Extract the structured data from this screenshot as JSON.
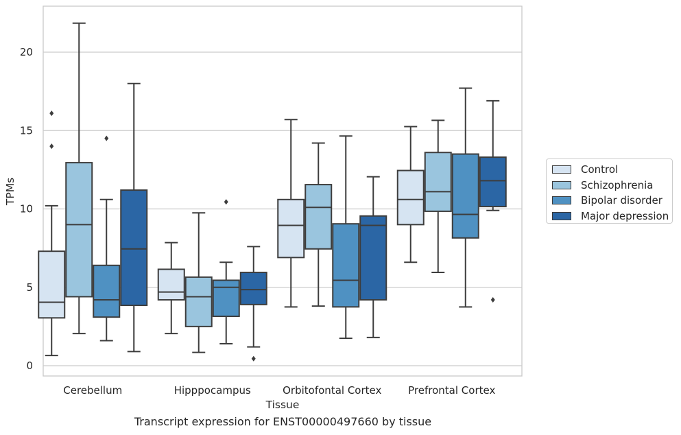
{
  "chart_data": {
    "type": "box",
    "title": "",
    "caption": "Transcript expression for ENST00000497660 by tissue",
    "xlabel": "Tissue",
    "ylabel": "TPMs",
    "ylim": [
      -0.6,
      23.0
    ],
    "yticks": [
      0,
      5,
      10,
      15,
      20
    ],
    "grid": "horizontal",
    "legend_position": "right",
    "categories": [
      "Cerebellum",
      "Hipppocampus",
      "Orbitofontal Cortex",
      "Prefrontal Cortex"
    ],
    "series": [
      {
        "name": "Control",
        "color": "#d6e4f2",
        "boxes": [
          {
            "whislo": 0.65,
            "q1": 3.05,
            "med": 4.05,
            "q3": 7.3,
            "whishi": 10.2,
            "fliers": []
          },
          {
            "whislo": 2.05,
            "q1": 4.2,
            "med": 4.7,
            "q3": 6.15,
            "whishi": 7.85,
            "fliers": []
          },
          {
            "whislo": 3.75,
            "q1": 6.9,
            "med": 8.95,
            "q3": 10.6,
            "whishi": 15.7,
            "fliers": []
          },
          {
            "whislo": 6.6,
            "q1": 9.0,
            "med": 10.6,
            "q3": 12.45,
            "whishi": 15.25,
            "fliers": []
          }
        ]
      },
      {
        "name": "Schizophrenia",
        "color": "#9ac5de",
        "boxes": [
          {
            "whislo": 2.05,
            "q1": 4.4,
            "med": 9.0,
            "q3": 12.95,
            "whishi": 21.85,
            "fliers": []
          },
          {
            "whislo": 0.85,
            "q1": 2.5,
            "med": 4.4,
            "q3": 5.65,
            "whishi": 9.75,
            "fliers": []
          },
          {
            "whislo": 3.8,
            "q1": 7.45,
            "med": 10.1,
            "q3": 11.55,
            "whishi": 14.2,
            "fliers": []
          },
          {
            "whislo": 5.95,
            "q1": 9.85,
            "med": 11.1,
            "q3": 13.6,
            "whishi": 15.65,
            "fliers": []
          }
        ]
      },
      {
        "name": "Bipolar disorder",
        "color": "#4f91c2",
        "boxes": [
          {
            "whislo": 1.6,
            "q1": 3.1,
            "med": 4.2,
            "q3": 6.4,
            "whishi": 10.6,
            "fliers": [
              14.5
            ]
          },
          {
            "whislo": 1.4,
            "q1": 3.15,
            "med": 5.0,
            "q3": 5.45,
            "whishi": 6.6,
            "fliers": [
              10.45
            ]
          },
          {
            "whislo": 1.75,
            "q1": 3.75,
            "med": 5.45,
            "q3": 9.05,
            "whishi": 14.65,
            "fliers": []
          },
          {
            "whislo": 3.75,
            "q1": 8.15,
            "med": 9.65,
            "q3": 13.5,
            "whishi": 17.7,
            "fliers": []
          }
        ]
      },
      {
        "name": "Major depression",
        "color": "#2b66a5",
        "boxes": [
          {
            "whislo": 0.9,
            "q1": 3.85,
            "med": 7.45,
            "q3": 11.2,
            "whishi": 18.0,
            "fliers": []
          },
          {
            "whislo": 1.2,
            "q1": 3.9,
            "med": 4.85,
            "q3": 5.95,
            "whishi": 7.6,
            "fliers": [
              0.45
            ]
          },
          {
            "whislo": 1.8,
            "q1": 4.2,
            "med": 8.95,
            "q3": 9.55,
            "whishi": 12.05,
            "fliers": []
          },
          {
            "whislo": 9.9,
            "q1": 10.15,
            "med": 11.8,
            "q3": 13.3,
            "whishi": 16.9,
            "fliers": [
              4.2
            ]
          }
        ]
      }
    ],
    "extra_fliers": [
      {
        "series": 0,
        "category": 0,
        "values": [
          16.1,
          14.0
        ]
      }
    ]
  }
}
